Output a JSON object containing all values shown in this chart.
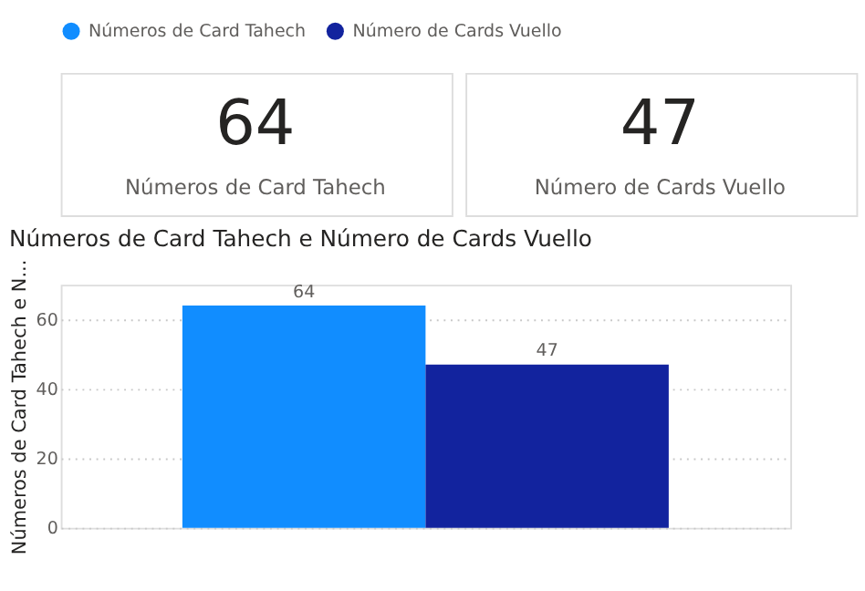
{
  "chart_data": [
    {
      "type": "other",
      "categories": [
        "Números de Card Tahech"
      ],
      "values": [
        64
      ],
      "data_labels": true
    },
    {
      "type": "other",
      "categories": [
        "Número de Cards Vuello"
      ],
      "values": [
        47
      ],
      "data_labels": true
    },
    {
      "type": "bar",
      "title": "Números de Card Tahech e Número de Cards Vuello",
      "ylabel": "Números de Card Tahech e N...",
      "categories": [
        null
      ],
      "series": [
        {
          "name": "Números de Card Tahech",
          "color": "#118dff",
          "values": [
            64
          ]
        },
        {
          "name": "Número de Cards Vuello",
          "color": "#12239e",
          "values": [
            47
          ]
        }
      ],
      "ylim": [
        0,
        70
      ],
      "yticks": [
        0,
        20,
        40,
        60
      ],
      "grid": "y",
      "legend": "top left",
      "data_labels": true
    }
  ]
}
